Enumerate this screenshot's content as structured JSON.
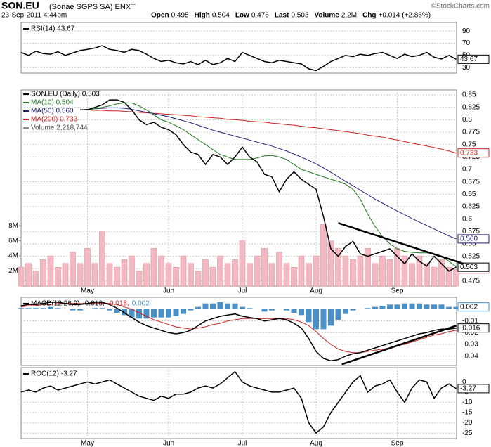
{
  "header": {
    "title": "SON.EU",
    "subtitle": "(Sonae SGPS SA) ENXT",
    "date": "23-Sep-2011 4:44pm",
    "quote": [
      {
        "label": "Open",
        "value": "0.495"
      },
      {
        "label": "High",
        "value": "0.504"
      },
      {
        "label": "Low",
        "value": "0.476"
      },
      {
        "label": "Last",
        "value": "0.503"
      },
      {
        "label": "Volume",
        "value": "2.2M"
      },
      {
        "label": "Chg",
        "value": "+0.014 (+2.86%)"
      }
    ],
    "copyright": "©StockCharts.com"
  },
  "chart_data": [
    {
      "type": "line",
      "title": "RSI(14) 43.67",
      "ylim": [
        21,
        104
      ],
      "yticks": [
        30,
        50,
        70,
        90
      ],
      "grid": true,
      "series": [
        {
          "color": "#000000",
          "last_label": "43.67",
          "values": [
            55,
            50,
            57,
            53,
            52,
            56,
            50,
            54,
            58,
            60,
            62,
            66,
            60,
            58,
            55,
            60,
            58,
            52,
            45,
            40,
            42,
            38,
            36,
            40,
            35,
            42,
            35,
            38,
            45,
            40,
            55,
            50,
            45,
            40,
            38,
            42,
            40,
            38,
            36,
            28,
            25,
            32,
            40,
            45,
            50,
            48,
            52,
            50,
            53,
            55,
            50,
            45,
            52,
            48,
            50,
            55,
            47,
            44,
            50,
            43.67
          ]
        }
      ]
    },
    {
      "type": "line",
      "ylim": [
        0.465,
        0.86
      ],
      "yticks": [
        0.475,
        0.5,
        0.525,
        0.55,
        0.575,
        0.6,
        0.625,
        0.65,
        0.675,
        0.7,
        0.725,
        0.75,
        0.775,
        0.8,
        0.825,
        0.85
      ],
      "grid": true,
      "y2lim": [
        0,
        26
      ],
      "y2ticks": [
        {
          "value": 2,
          "label": "2M"
        },
        {
          "value": 4,
          "label": "4M"
        },
        {
          "value": 6,
          "label": "6M"
        },
        {
          "value": 8,
          "label": "8M"
        }
      ],
      "categories": [
        null,
        null,
        null,
        null,
        null,
        null,
        null,
        null,
        null,
        "May",
        null,
        null,
        null,
        null,
        null,
        null,
        null,
        null,
        null,
        null,
        "Jun",
        null,
        null,
        null,
        null,
        null,
        null,
        null,
        null,
        null,
        "Jul",
        null,
        null,
        null,
        null,
        null,
        null,
        null,
        null,
        null,
        "Aug",
        null,
        null,
        null,
        null,
        null,
        null,
        null,
        null,
        null,
        null,
        "Sep",
        null,
        null,
        null,
        null,
        null,
        null,
        null,
        null
      ],
      "series": [
        {
          "name": "Volume 2,218,744",
          "type": "bar",
          "axis": "y2",
          "color": "#f2b8c3",
          "last_label": "2218744",
          "values": [
            2.5,
            3,
            2,
            3.5,
            4,
            2.5,
            3,
            4.5,
            3,
            5,
            3,
            7.3,
            3,
            2.5,
            3.5,
            4,
            2,
            3,
            5,
            4,
            3,
            2.5,
            4,
            3,
            2,
            3.5,
            2.5,
            4,
            3,
            3.5,
            6,
            3,
            4,
            5,
            3,
            4.5,
            3,
            2.5,
            4,
            3,
            4,
            8.2,
            6,
            5,
            4,
            3.5,
            4,
            5,
            3,
            4,
            3.5,
            5,
            4,
            3,
            4,
            3,
            2.5,
            3.5,
            2.5,
            2.22
          ]
        },
        {
          "name": "MA(200) 0.733",
          "color": "#cc2222",
          "last_label": "0.733",
          "values": [
            null,
            null,
            null,
            null,
            null,
            null,
            null,
            null,
            0.82,
            0.82,
            0.819,
            0.819,
            0.818,
            0.818,
            0.817,
            0.816,
            0.815,
            0.814,
            0.813,
            0.812,
            0.811,
            0.81,
            0.809,
            0.808,
            0.806,
            0.805,
            0.804,
            0.803,
            0.801,
            0.8,
            0.799,
            0.797,
            0.796,
            0.795,
            0.793,
            0.792,
            0.79,
            0.789,
            0.787,
            0.785,
            0.784,
            0.782,
            0.78,
            0.778,
            0.776,
            0.774,
            0.772,
            0.769,
            0.767,
            0.765,
            0.762,
            0.759,
            0.756,
            0.753,
            0.75,
            0.747,
            0.744,
            0.741,
            0.737,
            0.733
          ]
        },
        {
          "name": "MA(50) 0.560",
          "color": "#222277",
          "last_label": "0.560",
          "values": [
            null,
            null,
            null,
            null,
            null,
            null,
            null,
            null,
            0.82,
            0.821,
            0.822,
            0.823,
            0.824,
            0.824,
            0.823,
            0.821,
            0.818,
            0.815,
            0.812,
            0.809,
            0.806,
            0.802,
            0.798,
            0.794,
            0.789,
            0.784,
            0.779,
            0.775,
            0.771,
            0.767,
            0.763,
            0.759,
            0.755,
            0.751,
            0.747,
            0.742,
            0.737,
            0.731,
            0.725,
            0.718,
            0.711,
            0.703,
            0.694,
            0.685,
            0.676,
            0.667,
            0.658,
            0.649,
            0.64,
            0.632,
            0.624,
            0.616,
            0.609,
            0.601,
            0.594,
            0.587,
            0.58,
            0.573,
            0.566,
            0.56
          ]
        },
        {
          "name": "MA(10) 0.504",
          "color": "#227722",
          "values": [
            null,
            null,
            null,
            null,
            null,
            null,
            null,
            null,
            0.82,
            0.82,
            0.822,
            0.825,
            0.828,
            0.832,
            0.834,
            0.834,
            0.828,
            0.82,
            0.81,
            0.8,
            0.795,
            0.788,
            0.78,
            0.77,
            0.76,
            0.75,
            0.74,
            0.73,
            0.725,
            0.72,
            0.72,
            0.72,
            0.723,
            0.727,
            0.728,
            0.725,
            0.72,
            0.71,
            0.7,
            0.695,
            0.69,
            0.685,
            0.68,
            0.676,
            0.67,
            0.66,
            0.64,
            0.61,
            0.585,
            0.565,
            0.55,
            0.54,
            0.535,
            0.533,
            0.532,
            0.532,
            0.53,
            0.525,
            0.515,
            0.504
          ]
        },
        {
          "name": "SON.EU (Daily) 0.503",
          "color": "#000000",
          "last_label": "0.503",
          "values": [
            null,
            null,
            null,
            null,
            null,
            null,
            null,
            null,
            0.82,
            0.82,
            0.825,
            0.83,
            0.84,
            0.84,
            0.835,
            0.82,
            0.8,
            0.79,
            0.795,
            0.785,
            0.78,
            0.77,
            0.75,
            0.735,
            0.73,
            0.71,
            0.73,
            0.725,
            0.71,
            0.725,
            0.745,
            0.725,
            0.715,
            0.69,
            0.685,
            0.655,
            0.68,
            0.695,
            0.68,
            0.67,
            0.66,
            0.605,
            0.54,
            0.525,
            0.545,
            0.555,
            0.53,
            0.525,
            0.53,
            0.535,
            0.54,
            0.525,
            0.51,
            0.53,
            0.515,
            0.505,
            0.525,
            0.51,
            0.495,
            0.503
          ]
        }
      ],
      "trendlines": [
        {
          "x": [
            43,
            60
          ],
          "y": [
            0.592,
            0.51
          ]
        }
      ]
    },
    {
      "type": "line",
      "title": "MACD(12,26,9)",
      "ylim": [
        -0.048,
        0.0102
      ],
      "yticks": [
        -0.01,
        -0.02,
        -0.03,
        -0.04
      ],
      "grid": true,
      "series": [
        {
          "name": "0.002",
          "type": "bar",
          "color": "#4a90c8",
          "last_label": "0.002",
          "values": [
            0.001,
            0.001,
            0.001,
            0.001,
            0.002,
            0.001,
            0,
            -0.001,
            -0.001,
            0,
            0.001,
            0.001,
            -0.001,
            -0.003,
            -0.005,
            -0.007,
            -0.008,
            -0.008,
            -0.007,
            -0.007,
            -0.007,
            -0.006,
            -0.004,
            -0.001,
            0.002,
            0.005,
            0.005,
            0.006,
            0.005,
            0.005,
            0.002,
            0.001,
            0,
            -0.002,
            -0.001,
            0,
            -0.001,
            -0.003,
            -0.005,
            -0.011,
            -0.017,
            -0.017,
            -0.014,
            -0.009,
            -0.004,
            -0.001,
            0,
            0.001,
            0.002,
            0.003,
            0.004,
            0.004,
            0.005,
            0.005,
            0.005,
            0.004,
            0.004,
            0.004,
            0.002,
            0.002
          ]
        },
        {
          "name": "-0.018,",
          "color": "#cc2222",
          "values": [
            0.002,
            0.003,
            0.003,
            0.004,
            0.004,
            0.005,
            0.005,
            0.005,
            0.005,
            0.005,
            0.005,
            0.005,
            0.005,
            0.004,
            0.002,
            0,
            -0.003,
            -0.006,
            -0.009,
            -0.011,
            -0.013,
            -0.015,
            -0.016,
            -0.017,
            -0.016,
            -0.015,
            -0.013,
            -0.012,
            -0.01,
            -0.009,
            -0.008,
            -0.008,
            -0.008,
            -0.008,
            -0.008,
            -0.008,
            -0.008,
            -0.009,
            -0.011,
            -0.014,
            -0.019,
            -0.025,
            -0.03,
            -0.034,
            -0.036,
            -0.037,
            -0.037,
            -0.036,
            -0.035,
            -0.034,
            -0.033,
            -0.031,
            -0.03,
            -0.028,
            -0.026,
            -0.024,
            -0.022,
            -0.021,
            -0.019,
            -0.018
          ]
        },
        {
          "name": "-0.016,",
          "color": "#000000",
          "last_label": "-0.016",
          "values": [
            0.003,
            0.004,
            0.004,
            0.005,
            0.006,
            0.006,
            0.005,
            0.004,
            0.004,
            0.005,
            0.006,
            0.006,
            0.004,
            0.001,
            -0.003,
            -0.007,
            -0.011,
            -0.014,
            -0.016,
            -0.018,
            -0.02,
            -0.021,
            -0.02,
            -0.018,
            -0.014,
            -0.01,
            -0.008,
            -0.006,
            -0.005,
            -0.004,
            -0.006,
            -0.007,
            -0.008,
            -0.01,
            -0.009,
            -0.008,
            -0.009,
            -0.012,
            -0.016,
            -0.025,
            -0.036,
            -0.042,
            -0.044,
            -0.043,
            -0.04,
            -0.038,
            -0.037,
            -0.035,
            -0.033,
            -0.031,
            -0.029,
            -0.027,
            -0.025,
            -0.023,
            -0.021,
            -0.02,
            -0.018,
            -0.017,
            -0.017,
            -0.016
          ]
        }
      ],
      "trendlines": [
        {
          "x": [
            43.5,
            59
          ],
          "y": [
            -0.047,
            -0.014
          ]
        }
      ]
    },
    {
      "type": "line",
      "title": "ROC(12) -3.27",
      "ylim": [
        -27.7,
        7
      ],
      "yticks": [
        0,
        -5,
        -10,
        -15,
        -20,
        -25
      ],
      "grid": true,
      "categories": [
        null,
        null,
        null,
        null,
        null,
        null,
        null,
        null,
        null,
        "May",
        null,
        null,
        null,
        null,
        null,
        null,
        null,
        null,
        null,
        null,
        "Jun",
        null,
        null,
        null,
        null,
        null,
        null,
        null,
        null,
        null,
        "Jul",
        null,
        null,
        null,
        null,
        null,
        null,
        null,
        null,
        null,
        "Aug",
        null,
        null,
        null,
        null,
        null,
        null,
        null,
        null,
        null,
        null,
        "Sep",
        null,
        null,
        null,
        null,
        null,
        null,
        null,
        null
      ],
      "series": [
        {
          "color": "#000000",
          "last_label": "-3.27",
          "values": [
            -5,
            -4,
            -5,
            -3,
            -2,
            -4,
            -3,
            -2,
            -1,
            0,
            -1,
            0,
            1,
            -1,
            -3,
            -5,
            -7,
            -8,
            -9,
            -7,
            -8,
            -6,
            -6,
            -5,
            -3,
            -2,
            -3,
            -1,
            2,
            5,
            0,
            -2,
            -3,
            -4,
            -5,
            -5,
            -4,
            -3,
            -8,
            -20,
            -25,
            -22,
            -15,
            -10,
            -5,
            0,
            3,
            -5,
            -2,
            -1,
            1,
            -5,
            -10,
            -3,
            1,
            0,
            -8,
            -3,
            -1,
            -3.27
          ]
        }
      ]
    }
  ]
}
